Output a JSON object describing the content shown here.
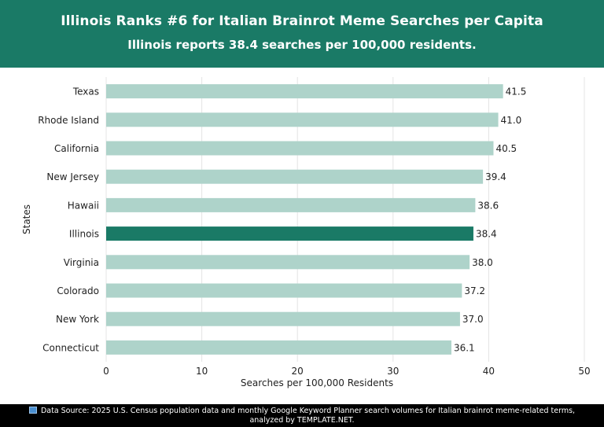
{
  "header": {
    "title": "Illinois Ranks #6 for Italian Brainrot Meme Searches per Capita",
    "subtitle": "Illinois reports 38.4 searches per 100,000 residents."
  },
  "footer": {
    "icon": "bar-chart-icon",
    "line1": "Data Source: 2025 U.S. Census population data and monthly Google Keyword Planner search volumes for Italian brainrot meme-related terms,",
    "line2": "analyzed by TEMPLATE.NET."
  },
  "colors": {
    "header_bg": "#1a7a66",
    "bar": "#aed3ca",
    "highlight_bar": "#1a7a66",
    "footer_bg": "#000000"
  },
  "chart_data": {
    "type": "bar",
    "orientation": "horizontal",
    "categories": [
      "Texas",
      "Rhode Island",
      "California",
      "New Jersey",
      "Hawaii",
      "Illinois",
      "Virginia",
      "Colorado",
      "New York",
      "Connecticut"
    ],
    "values": [
      41.5,
      41.0,
      40.5,
      39.4,
      38.6,
      38.4,
      38.0,
      37.2,
      37.0,
      36.1
    ],
    "value_labels": [
      "41.5",
      "41.0",
      "40.5",
      "39.4",
      "38.6",
      "38.4",
      "38.0",
      "37.2",
      "37.0",
      "36.1"
    ],
    "highlight": "Illinois",
    "xlabel": "Searches per 100,000 Residents",
    "ylabel": "States",
    "xlim": [
      0,
      50
    ],
    "xticks": [
      "0",
      "10",
      "20",
      "30",
      "40",
      "50"
    ],
    "grid": true
  }
}
